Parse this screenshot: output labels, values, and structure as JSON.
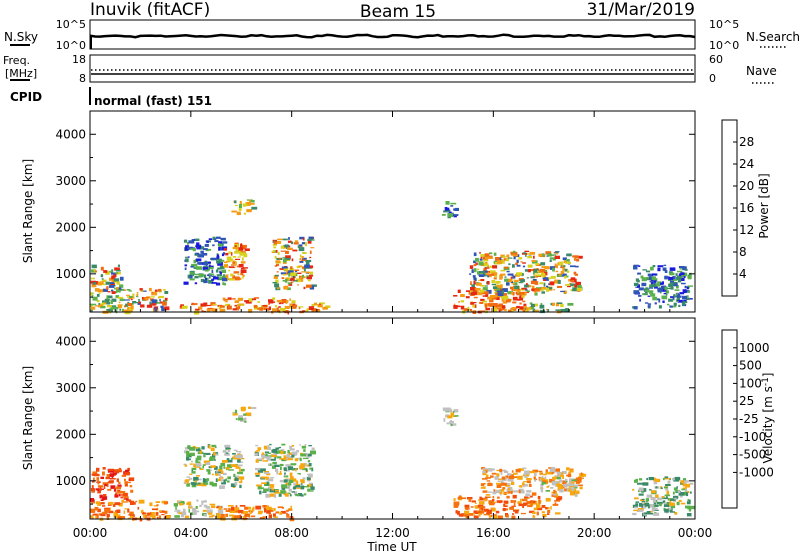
{
  "header": {
    "station": "Inuvik (fitACF)",
    "beam": "Beam 15",
    "date": "31/Mar/2019"
  },
  "top_panels": {
    "nsky": {
      "left_label": "N.Sky",
      "left_ticks": [
        "10^5",
        "10^0"
      ],
      "right_label": "N.Search",
      "right_ticks": [
        "10^5",
        "10^0"
      ]
    },
    "freq": {
      "left_label_1": "Freq.",
      "left_label_2": "[MHz]",
      "left_ticks": [
        "18",
        "8"
      ],
      "right_label": "Nave",
      "right_ticks": [
        "60",
        "0"
      ]
    },
    "cpid": {
      "label": "CPID",
      "value": "normal (fast) 151"
    }
  },
  "colors": {
    "power_scale": [
      "#1a1adc",
      "#2f55b5",
      "#3a8a6a",
      "#5ab04a",
      "#d7d21e",
      "#f59a14",
      "#f06a10",
      "#e62812"
    ],
    "velocity_scale": [
      "#e21414",
      "#f24a0a",
      "#f5720c",
      "#f7a80e",
      "#c0c0c0",
      "#c0c0c0",
      "#5ab04a",
      "#3a8a6a",
      "#2f55b5",
      "#1a1adc"
    ]
  },
  "chart_data": [
    {
      "type": "heatmap",
      "panel": "power",
      "ylabel": "Slant Range [km]",
      "ylim": [
        180,
        4500
      ],
      "yticks": [
        "4000",
        "3000",
        "2000",
        "1000"
      ],
      "xlim": [
        "00:00",
        "24:00"
      ],
      "colorbar_label": "Power [dB]",
      "colorbar_ticks": [
        "28",
        "24",
        "20",
        "16",
        "12",
        "8",
        "4"
      ],
      "colorbar_range": [
        0,
        32
      ],
      "patches": [
        {
          "t0": 0.0,
          "t1": 1.6,
          "r0": 200,
          "r1": 600,
          "level": "mid"
        },
        {
          "t0": 0.0,
          "t1": 1.2,
          "r0": 600,
          "r1": 1200,
          "level": "mixed"
        },
        {
          "t0": 1.3,
          "t1": 3.0,
          "r0": 250,
          "r1": 700,
          "level": "mixed"
        },
        {
          "t0": 3.5,
          "t1": 5.0,
          "r0": 200,
          "r1": 400,
          "level": "high"
        },
        {
          "t0": 3.7,
          "t1": 5.3,
          "r0": 800,
          "r1": 1800,
          "level": "low"
        },
        {
          "t0": 5.3,
          "t1": 6.2,
          "r0": 900,
          "r1": 1700,
          "level": "high"
        },
        {
          "t0": 5.0,
          "t1": 8.0,
          "r0": 200,
          "r1": 500,
          "level": "high"
        },
        {
          "t0": 7.2,
          "t1": 8.8,
          "r0": 700,
          "r1": 1800,
          "level": "mixed"
        },
        {
          "t0": 8.0,
          "t1": 9.5,
          "r0": 200,
          "r1": 400,
          "level": "high"
        },
        {
          "t0": 5.6,
          "t1": 6.4,
          "r0": 2300,
          "r1": 2600,
          "level": "mid"
        },
        {
          "t0": 13.9,
          "t1": 14.5,
          "r0": 2200,
          "r1": 2600,
          "level": "low"
        },
        {
          "t0": 14.4,
          "t1": 17.2,
          "r0": 200,
          "r1": 700,
          "level": "high"
        },
        {
          "t0": 15.0,
          "t1": 19.4,
          "r0": 600,
          "r1": 1500,
          "level": "mixed"
        },
        {
          "t0": 17.2,
          "t1": 19.0,
          "r0": 200,
          "r1": 400,
          "level": "mid"
        },
        {
          "t0": 21.5,
          "t1": 23.8,
          "r0": 300,
          "r1": 1200,
          "level": "low"
        }
      ]
    },
    {
      "type": "heatmap",
      "panel": "velocity",
      "ylabel": "Slant Range [km]",
      "ylim": [
        180,
        4500
      ],
      "yticks": [
        "4000",
        "3000",
        "2000",
        "1000"
      ],
      "xlabel": "Time UT",
      "xticks": [
        "00:00",
        "04:00",
        "08:00",
        "12:00",
        "16:00",
        "20:00",
        "00:00"
      ],
      "xlim": [
        "00:00",
        "24:00"
      ],
      "colorbar_label": "Velocity [m s^-1]",
      "colorbar_ticks": [
        "1000",
        "500",
        "100",
        "25",
        "-25",
        "-100",
        "-500",
        "-1000"
      ],
      "patches": [
        {
          "t0": 0.0,
          "t1": 1.6,
          "r0": 600,
          "r1": 1300,
          "level": "neg_strong"
        },
        {
          "t0": 0.0,
          "t1": 3.0,
          "r0": 200,
          "r1": 600,
          "level": "neg_mid"
        },
        {
          "t0": 3.3,
          "t1": 5.2,
          "r0": 250,
          "r1": 600,
          "level": "zero"
        },
        {
          "t0": 3.7,
          "t1": 6.0,
          "r0": 900,
          "r1": 1800,
          "level": "pos_low"
        },
        {
          "t0": 5.0,
          "t1": 8.0,
          "r0": 200,
          "r1": 500,
          "level": "neg_mid"
        },
        {
          "t0": 6.5,
          "t1": 8.8,
          "r0": 700,
          "r1": 1800,
          "level": "pos_low"
        },
        {
          "t0": 5.6,
          "t1": 6.4,
          "r0": 2300,
          "r1": 2600,
          "level": "zero"
        },
        {
          "t0": 13.9,
          "t1": 14.5,
          "r0": 2200,
          "r1": 2600,
          "level": "zero"
        },
        {
          "t0": 14.4,
          "t1": 18.5,
          "r0": 250,
          "r1": 700,
          "level": "neg_mid"
        },
        {
          "t0": 15.5,
          "t1": 19.5,
          "r0": 700,
          "r1": 1300,
          "level": "neg_low"
        },
        {
          "t0": 17.8,
          "t1": 19.2,
          "r0": 800,
          "r1": 1100,
          "level": "zero"
        },
        {
          "t0": 21.5,
          "t1": 23.8,
          "r0": 300,
          "r1": 1100,
          "level": "pos_low"
        }
      ]
    }
  ]
}
